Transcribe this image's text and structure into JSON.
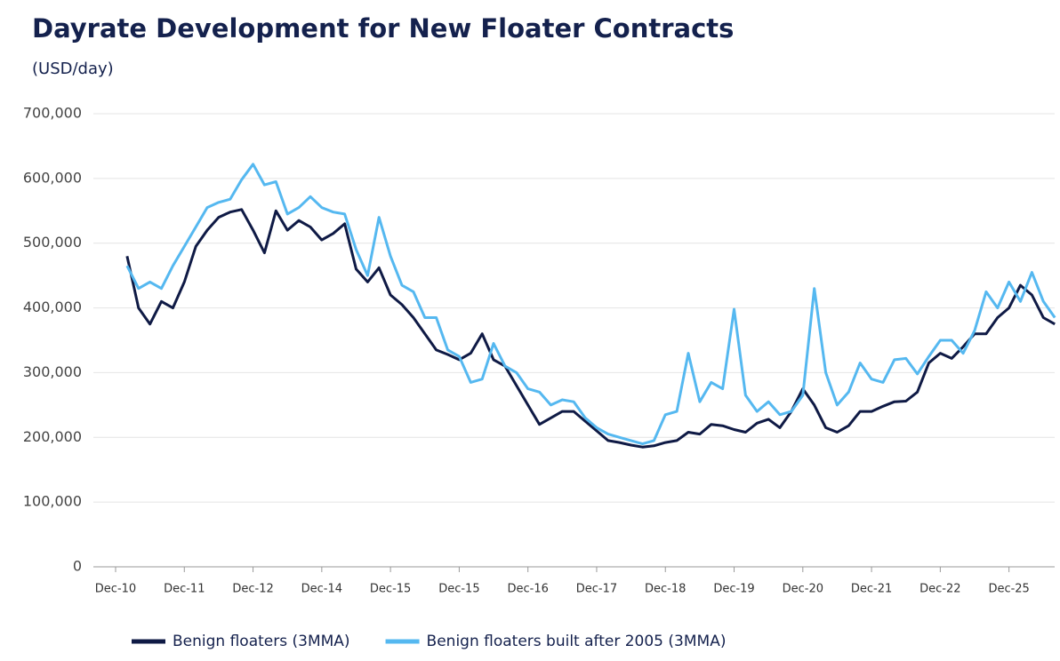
{
  "chart_data": {
    "type": "line",
    "title": "Dayrate Development for New Floater Contracts",
    "subtitle": "(USD/day)",
    "categories": [
      "Dec-10",
      null,
      null,
      null,
      null,
      null,
      "Dec-11",
      null,
      null,
      null,
      null,
      null,
      "Dec-12",
      null,
      null,
      null,
      null,
      null,
      "Dec-14",
      null,
      null,
      null,
      null,
      null,
      "Dec-15",
      null,
      null,
      null,
      null,
      null,
      "Dec-15",
      null,
      null,
      null,
      null,
      null,
      "Dec-16",
      null,
      null,
      null,
      null,
      null,
      "Dec-17",
      null,
      null,
      null,
      null,
      null,
      "Dec-18",
      null,
      null,
      null,
      null,
      null,
      "Dec-19",
      null,
      null,
      null,
      null,
      null,
      "Dec-20",
      null,
      null,
      null,
      null,
      null,
      "Dec-21",
      null,
      null,
      null,
      null,
      null,
      "Dec-22",
      null,
      null,
      null,
      null,
      null,
      "Dec-25",
      null,
      null,
      null,
      null
    ],
    "series": [
      {
        "name": "Benign floaters (3MMA)",
        "color": "#0f1a45",
        "values": [
          null,
          480000,
          400000,
          375000,
          410000,
          400000,
          440000,
          495000,
          520000,
          540000,
          548000,
          552000,
          520000,
          485000,
          550000,
          520000,
          535000,
          525000,
          505000,
          515000,
          530000,
          460000,
          440000,
          462000,
          420000,
          405000,
          385000,
          360000,
          335000,
          328000,
          320000,
          330000,
          360000,
          320000,
          310000,
          280000,
          250000,
          220000,
          230000,
          240000,
          240000,
          225000,
          210000,
          195000,
          192000,
          188000,
          185000,
          187000,
          192000,
          195000,
          208000,
          205000,
          220000,
          218000,
          212000,
          208000,
          222000,
          228000,
          215000,
          240000,
          275000,
          250000,
          215000,
          208000,
          218000,
          240000,
          240000,
          248000,
          255000,
          256000,
          270000,
          315000,
          330000,
          322000,
          340000,
          360000,
          360000,
          385000,
          400000,
          435000,
          420000,
          385000,
          375000
        ]
      },
      {
        "name": "Benign floaters built after 2005 (3MMA)",
        "color": "#55b8f0",
        "values": [
          null,
          465000,
          430000,
          440000,
          430000,
          465000,
          495000,
          525000,
          555000,
          563000,
          568000,
          598000,
          622000,
          590000,
          595000,
          545000,
          555000,
          572000,
          555000,
          548000,
          545000,
          490000,
          450000,
          540000,
          480000,
          435000,
          425000,
          385000,
          385000,
          335000,
          325000,
          285000,
          290000,
          345000,
          310000,
          300000,
          275000,
          270000,
          250000,
          258000,
          255000,
          230000,
          215000,
          205000,
          200000,
          195000,
          190000,
          195000,
          235000,
          240000,
          330000,
          255000,
          285000,
          275000,
          398000,
          265000,
          240000,
          255000,
          235000,
          240000,
          265000,
          430000,
          300000,
          250000,
          270000,
          315000,
          290000,
          285000,
          320000,
          322000,
          298000,
          325000,
          350000,
          350000,
          330000,
          365000,
          425000,
          400000,
          440000,
          410000,
          455000,
          410000,
          385000
        ]
      }
    ],
    "ylim": [
      0,
      700000
    ],
    "yticks": [
      0,
      {
        "value": 100000,
        "label": "100,000"
      },
      {
        "value": 200000,
        "label": "200,000"
      },
      {
        "value": 300000,
        "label": "300,000"
      },
      {
        "value": 400000,
        "label": "400,000"
      },
      {
        "value": 500000,
        "label": "500,000"
      },
      {
        "value": 600000,
        "label": "600,000"
      },
      {
        "value": 700000,
        "label": "700,000"
      }
    ],
    "grid": true
  }
}
